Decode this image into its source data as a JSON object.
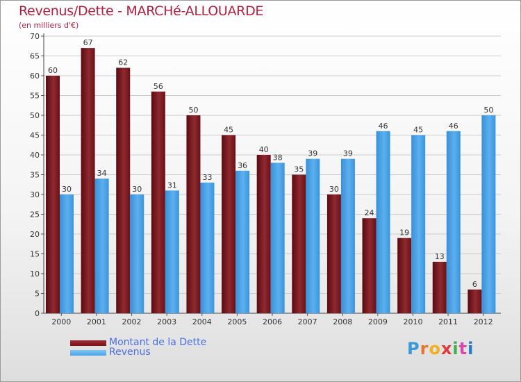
{
  "header": {
    "title": "Revenus/Dette - MARCHé-ALLOUARDE",
    "subtitle": "(en milliers d'€)"
  },
  "chart_data": {
    "type": "bar",
    "categories": [
      "2000",
      "2001",
      "2002",
      "2003",
      "2004",
      "2005",
      "2006",
      "2007",
      "2008",
      "2009",
      "2010",
      "2011",
      "2012"
    ],
    "series": [
      {
        "name": "Montant de la Dette",
        "values": [
          60,
          67,
          62,
          56,
          50,
          45,
          40,
          35,
          30,
          24,
          19,
          13,
          6
        ],
        "color": "#7b1218"
      },
      {
        "name": "Revenus",
        "values": [
          30,
          34,
          30,
          31,
          33,
          36,
          38,
          39,
          39,
          46,
          45,
          46,
          50
        ],
        "color": "#4aa3e8"
      }
    ],
    "title": "Revenus/Dette - MARCHé-ALLOUARDE",
    "subtitle": "(en milliers d'€)",
    "xlabel": "",
    "ylabel": "",
    "ylim": [
      0,
      70
    ],
    "yticks": [
      0,
      5,
      10,
      15,
      20,
      25,
      30,
      35,
      40,
      45,
      50,
      55,
      60,
      65,
      70
    ],
    "grid": true,
    "data_labels": true,
    "legend_position": "bottom-left"
  },
  "legend": {
    "items": [
      {
        "label": "Montant de la Dette",
        "color": "#7b1218"
      },
      {
        "label": "Revenus",
        "color": "#4aa3e8"
      }
    ]
  },
  "logo": {
    "letters": [
      "P",
      "r",
      "o",
      "x",
      "i",
      "t",
      "i"
    ],
    "colors": [
      "#3a9ad8",
      "#e8742a",
      "#f0b020",
      "#e03a3a",
      "#40b048",
      "#d848a8",
      "#2878c8"
    ]
  }
}
